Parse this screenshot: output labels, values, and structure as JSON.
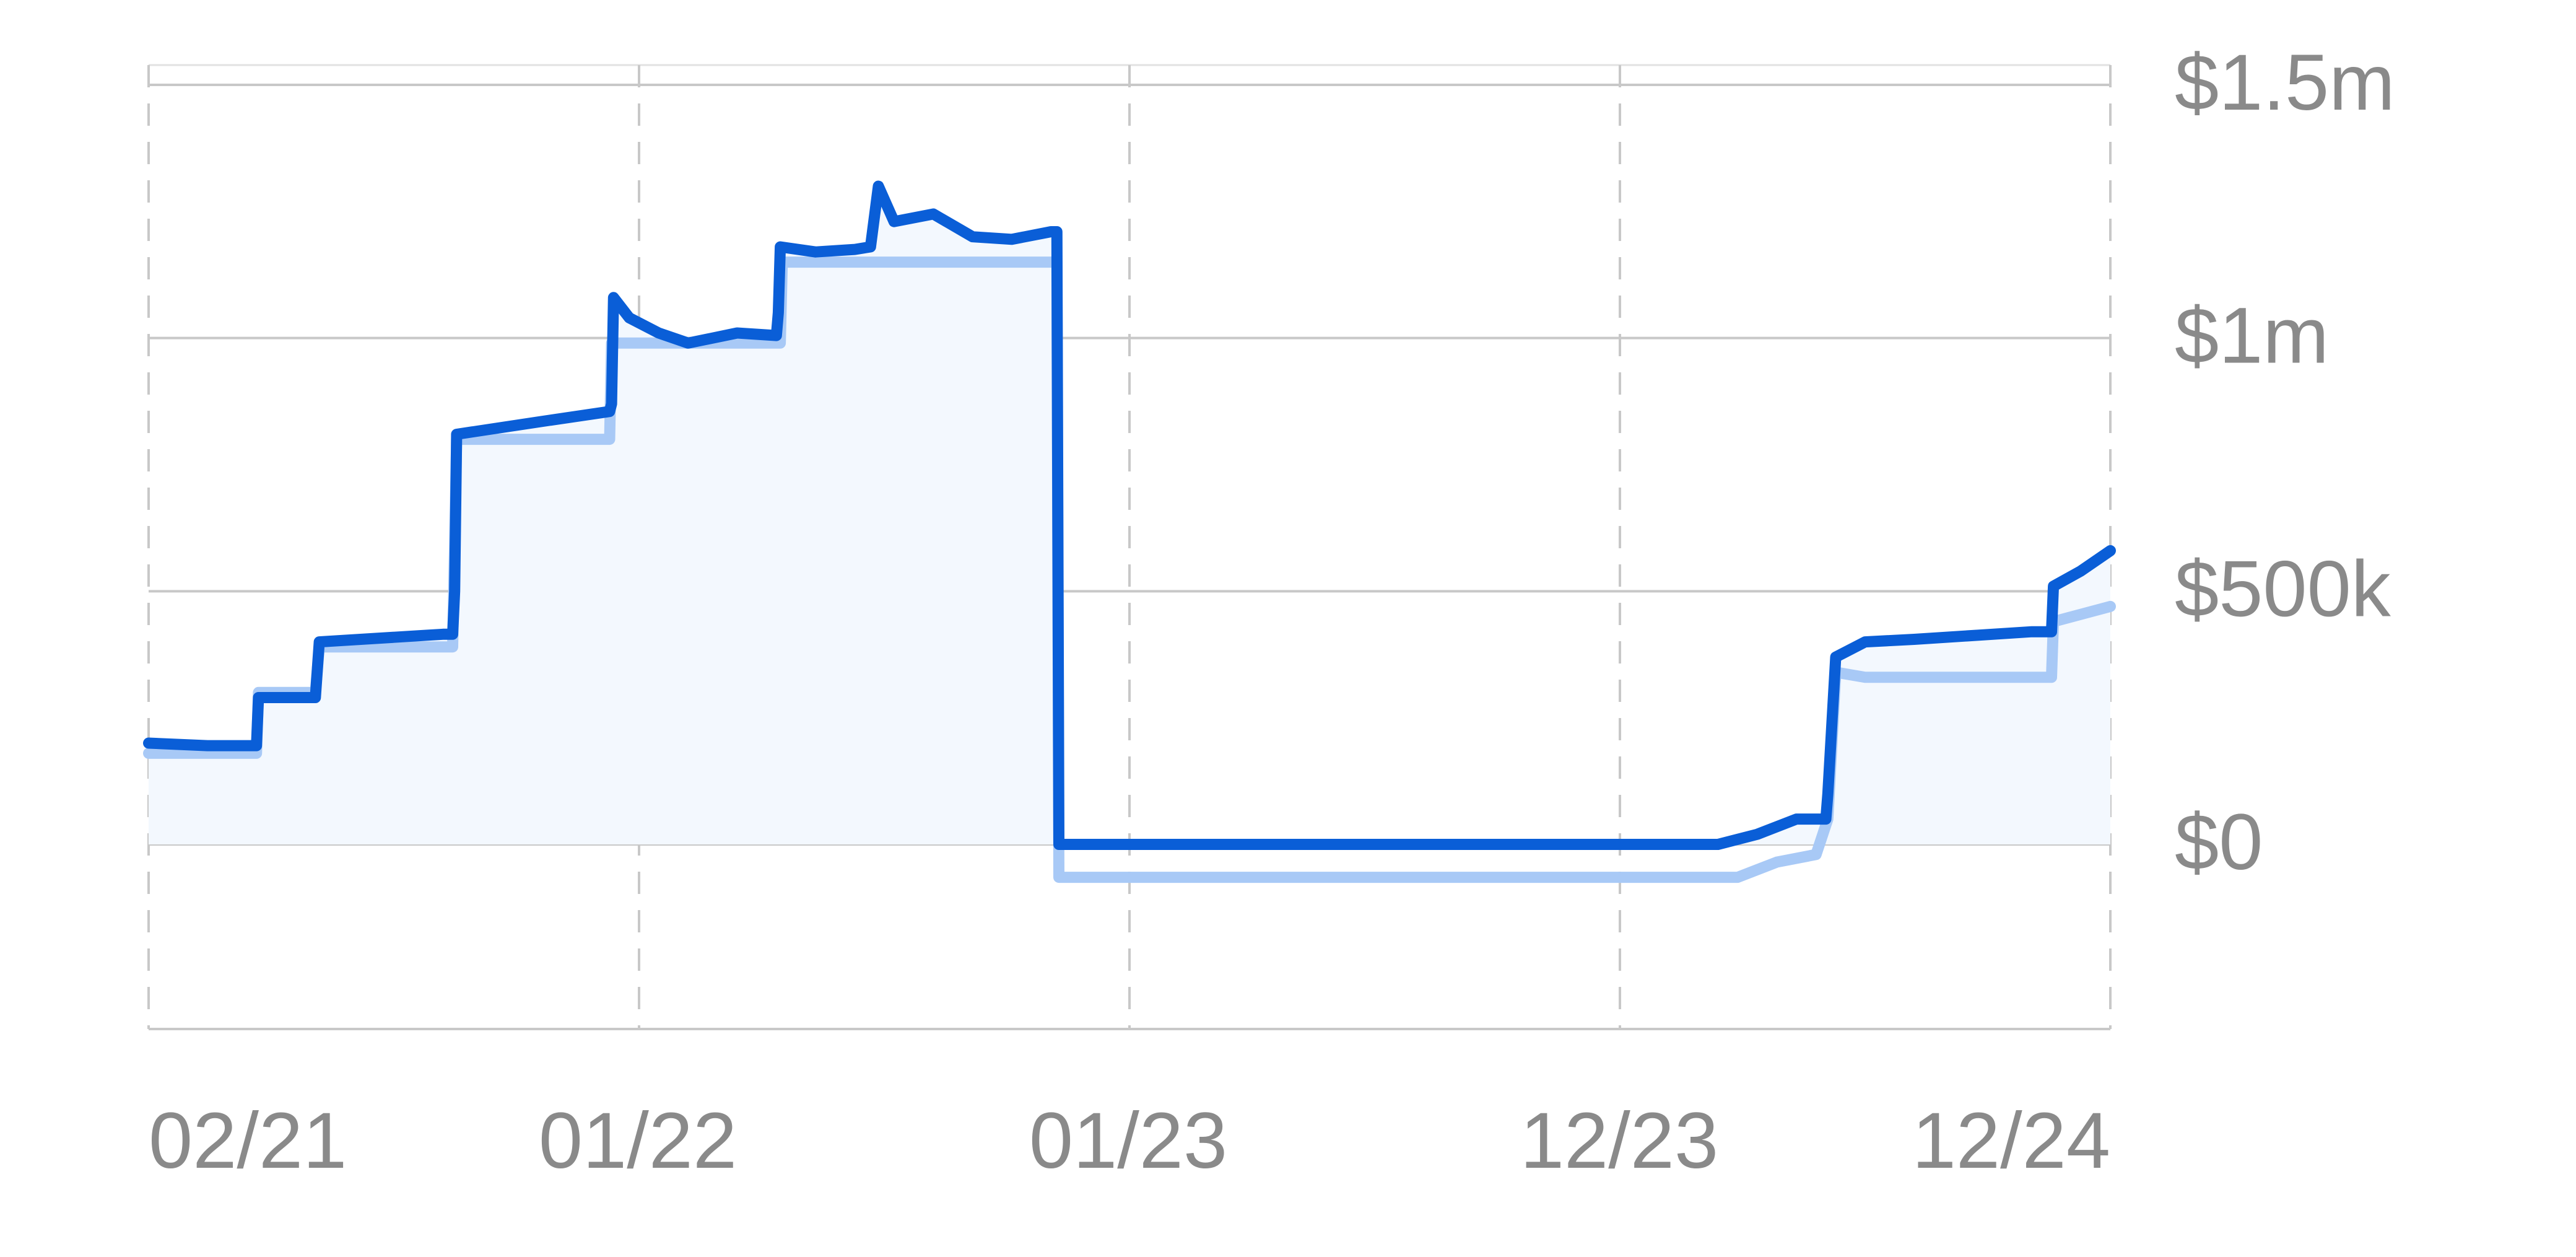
{
  "chart_data": {
    "type": "area",
    "title": "",
    "xlabel": "",
    "ylabel": "",
    "x_tick_labels": [
      "02/21",
      "01/22",
      "01/23",
      "12/23",
      "12/24"
    ],
    "y_tick_labels": [
      "$1.5m",
      "$1m",
      "$500k",
      "$0"
    ],
    "y_tick_values": [
      1500000,
      1000000,
      500000,
      0
    ],
    "ylim": [
      -365000,
      1550000
    ],
    "grid": true,
    "legend": "none",
    "colors": {
      "primary_line": "#0a5ed7",
      "secondary_line": "#a8c9f6",
      "fill": "#f3f8fe",
      "grid": "#c8c8c8",
      "tick_text": "#8a8a8a"
    },
    "series": [
      {
        "values": [
          [
            0.0,
            200000
          ],
          [
            0.03,
            195000
          ],
          [
            0.055,
            195000
          ],
          [
            0.056,
            290000
          ],
          [
            0.08,
            290000
          ],
          [
            0.083,
            290000
          ],
          [
            0.085,
            290000
          ],
          [
            0.087,
            400000
          ],
          [
            0.15,
            415000
          ],
          [
            0.155,
            415000
          ],
          [
            0.156,
            500000
          ],
          [
            0.157,
            810000
          ],
          [
            0.2,
            835000
          ],
          [
            0.235,
            855000
          ],
          [
            0.236,
            870000
          ],
          [
            0.237,
            1080000
          ],
          [
            0.245,
            1040000
          ],
          [
            0.26,
            1010000
          ],
          [
            0.275,
            990000
          ],
          [
            0.3,
            1010000
          ],
          [
            0.32,
            1005000
          ],
          [
            0.321,
            1050000
          ],
          [
            0.322,
            1180000
          ],
          [
            0.34,
            1170000
          ],
          [
            0.36,
            1175000
          ],
          [
            0.368,
            1180000
          ],
          [
            0.372,
            1300000
          ],
          [
            0.38,
            1230000
          ],
          [
            0.4,
            1245000
          ],
          [
            0.42,
            1200000
          ],
          [
            0.44,
            1195000
          ],
          [
            0.46,
            1210000
          ],
          [
            0.463,
            1210000
          ],
          [
            0.464,
            0
          ],
          [
            0.8,
            0
          ],
          [
            0.82,
            20000
          ],
          [
            0.84,
            50000
          ],
          [
            0.855,
            50000
          ],
          [
            0.856,
            100000
          ],
          [
            0.86,
            370000
          ],
          [
            0.875,
            400000
          ],
          [
            0.9,
            405000
          ],
          [
            0.96,
            420000
          ],
          [
            0.97,
            420000
          ],
          [
            0.971,
            510000
          ],
          [
            0.985,
            540000
          ],
          [
            1.0,
            580000
          ]
        ]
      },
      {
        "values": [
          [
            0.0,
            180000
          ],
          [
            0.055,
            180000
          ],
          [
            0.056,
            300000
          ],
          [
            0.085,
            300000
          ],
          [
            0.087,
            390000
          ],
          [
            0.155,
            390000
          ],
          [
            0.157,
            800000
          ],
          [
            0.235,
            800000
          ],
          [
            0.236,
            990000
          ],
          [
            0.322,
            990000
          ],
          [
            0.323,
            1150000
          ],
          [
            0.463,
            1150000
          ],
          [
            0.464,
            -65000
          ],
          [
            0.81,
            -65000
          ],
          [
            0.83,
            -35000
          ],
          [
            0.85,
            -20000
          ],
          [
            0.856,
            50000
          ],
          [
            0.86,
            340000
          ],
          [
            0.875,
            330000
          ],
          [
            0.97,
            330000
          ],
          [
            0.971,
            440000
          ],
          [
            1.0,
            470000
          ]
        ]
      }
    ]
  }
}
